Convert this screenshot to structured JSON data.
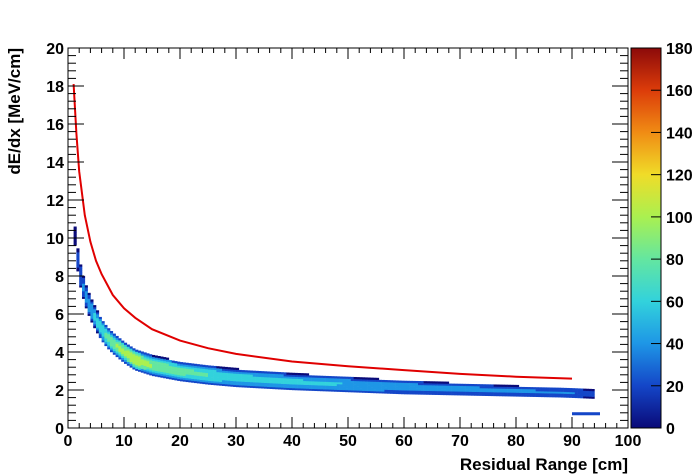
{
  "chart_data": {
    "type": "heatmap",
    "title": "",
    "xlabel": "Residual Range [cm]",
    "ylabel": "dE/dx [MeV/cm]",
    "xlim": [
      0,
      100
    ],
    "ylim": [
      0,
      20
    ],
    "x_ticks": [
      "0",
      "10",
      "20",
      "30",
      "40",
      "50",
      "60",
      "70",
      "80",
      "90",
      "100"
    ],
    "y_ticks": [
      "0",
      "2",
      "4",
      "6",
      "8",
      "10",
      "12",
      "14",
      "16",
      "18",
      "20"
    ],
    "colorbar": {
      "range": [
        0,
        180
      ],
      "ticks": [
        "0",
        "20",
        "40",
        "60",
        "80",
        "100",
        "120",
        "140",
        "160",
        "180"
      ],
      "colors": [
        "#0a0a78",
        "#1446c8",
        "#1e96e6",
        "#32d2dc",
        "#64e6a0",
        "#aaf050",
        "#f0dc28",
        "#f08c14",
        "#dc3c0a",
        "#8c0a0a"
      ]
    },
    "band": {
      "points": [
        [
          1,
          10.8
        ],
        [
          1.5,
          9.4
        ],
        [
          2,
          8.3
        ],
        [
          3,
          7.1
        ],
        [
          4,
          6.3
        ],
        [
          5,
          5.7
        ],
        [
          6,
          5.2
        ],
        [
          7,
          4.8
        ],
        [
          8,
          4.5
        ],
        [
          10,
          4.0
        ],
        [
          12,
          3.6
        ],
        [
          15,
          3.3
        ],
        [
          20,
          3.0
        ],
        [
          25,
          2.8
        ],
        [
          30,
          2.65
        ],
        [
          40,
          2.45
        ],
        [
          50,
          2.3
        ],
        [
          60,
          2.15
        ],
        [
          70,
          2.05
        ],
        [
          80,
          1.95
        ],
        [
          90,
          1.85
        ],
        [
          94,
          1.8
        ]
      ],
      "peak_counts": [
        10,
        20,
        30,
        40,
        50,
        60,
        70,
        80,
        90,
        100,
        110,
        90,
        80,
        70,
        60,
        55,
        50,
        45,
        40,
        35,
        30,
        25
      ]
    },
    "outlier_segment": {
      "x": [
        90,
        95
      ],
      "y": 0.75
    },
    "curve": {
      "color": "#e00000",
      "x": [
        1,
        1.5,
        2,
        3,
        4,
        5,
        6,
        8,
        10,
        12,
        15,
        20,
        25,
        30,
        40,
        50,
        60,
        70,
        80,
        90
      ],
      "y": [
        18.1,
        15.5,
        13.5,
        11.2,
        9.8,
        8.8,
        8.1,
        7.0,
        6.3,
        5.8,
        5.2,
        4.6,
        4.2,
        3.9,
        3.5,
        3.25,
        3.05,
        2.85,
        2.7,
        2.6
      ]
    }
  }
}
